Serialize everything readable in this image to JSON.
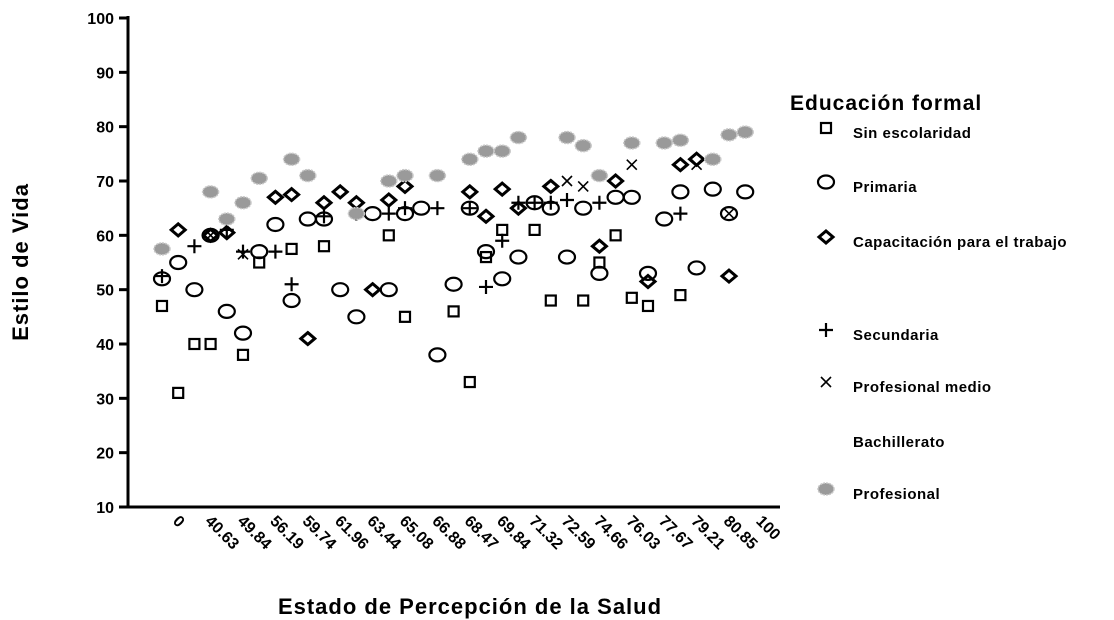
{
  "chart_data": {
    "type": "scatter",
    "x_label": "Estado de Percepción de la Salud",
    "y_label": "Estilo de Vida",
    "legend_title": "Educación formal",
    "categories": [
      "0",
      null,
      "40.63",
      null,
      "49.84",
      null,
      "56.19",
      null,
      "59.74",
      null,
      "61.96",
      null,
      "63.44",
      null,
      "65.08",
      null,
      "66.88",
      null,
      "68.47",
      null,
      "69.84",
      null,
      "71.32",
      null,
      "72.59",
      null,
      "74.66",
      null,
      "76.03",
      null,
      "77.67",
      null,
      "79.21",
      null,
      "80.85",
      null,
      "100"
    ],
    "ylim": [
      10,
      100
    ],
    "yticks": [
      10,
      20,
      30,
      40,
      50,
      60,
      70,
      80,
      90,
      100
    ],
    "series": [
      {
        "name": "Sin escolaridad",
        "marker": "square",
        "color": "#000000",
        "values": [
          47,
          31,
          40,
          40,
          null,
          38,
          55,
          null,
          57.5,
          null,
          58,
          null,
          null,
          null,
          60,
          45,
          null,
          null,
          46,
          33,
          56,
          61,
          null,
          61,
          48,
          null,
          48,
          55,
          60,
          48.5,
          47,
          null,
          49,
          null,
          null,
          null,
          null
        ]
      },
      {
        "name": "Primaria",
        "marker": "circle",
        "color": "#000000",
        "values": [
          52,
          55,
          50,
          60,
          46,
          42,
          57,
          62,
          48,
          63,
          63,
          50,
          45,
          64,
          50,
          64,
          65,
          38,
          51,
          65,
          57,
          52,
          56,
          66,
          65,
          56,
          65,
          53,
          67,
          67,
          53,
          63,
          68,
          54,
          68.5,
          64,
          68
        ]
      },
      {
        "name": "Capacitación para el trabajo",
        "marker": "diamond",
        "color": "#000000",
        "values": [
          null,
          61,
          null,
          60,
          60.5,
          null,
          null,
          67,
          67.5,
          41,
          66,
          68,
          66,
          50,
          66.5,
          69,
          null,
          null,
          null,
          68,
          63.5,
          68.5,
          65,
          null,
          69,
          null,
          null,
          58,
          70,
          null,
          51.5,
          null,
          73,
          74,
          null,
          52.5,
          null
        ]
      },
      {
        "name": "Secundaria",
        "marker": "plus",
        "color": "#000000",
        "values": [
          52.5,
          null,
          58,
          null,
          61,
          57,
          null,
          57,
          51,
          null,
          63.5,
          null,
          64,
          null,
          64,
          65,
          null,
          65,
          null,
          65,
          50.5,
          59,
          66,
          66,
          66,
          66.5,
          null,
          66,
          null,
          null,
          null,
          null,
          64,
          null,
          null,
          null,
          null
        ]
      },
      {
        "name": "Profesional medio",
        "marker": "cross",
        "color": "#000000",
        "values": [
          null,
          null,
          null,
          60,
          null,
          56.5,
          null,
          null,
          null,
          null,
          null,
          null,
          null,
          null,
          null,
          null,
          null,
          null,
          null,
          null,
          null,
          null,
          null,
          null,
          null,
          70,
          69,
          null,
          null,
          73,
          null,
          null,
          null,
          73,
          null,
          64,
          null
        ]
      },
      {
        "name": "Bachillerato",
        "marker": "none",
        "color": "#000000",
        "values": [
          null,
          null,
          null,
          null,
          null,
          null,
          null,
          null,
          null,
          null,
          null,
          null,
          null,
          null,
          null,
          null,
          null,
          null,
          null,
          null,
          null,
          null,
          null,
          null,
          null,
          null,
          null,
          null,
          null,
          null,
          null,
          null,
          null,
          null,
          null,
          null,
          null
        ]
      },
      {
        "name": "Profesional",
        "marker": "blob",
        "color": "#9a9a9a",
        "values": [
          57.5,
          null,
          null,
          68,
          63,
          66,
          70.5,
          null,
          74,
          71,
          null,
          null,
          64,
          null,
          70,
          71,
          null,
          71,
          null,
          74,
          75.5,
          75.5,
          78,
          null,
          null,
          78,
          76.5,
          71,
          null,
          77,
          null,
          77,
          77.5,
          null,
          74,
          78.5,
          79
        ]
      }
    ]
  }
}
